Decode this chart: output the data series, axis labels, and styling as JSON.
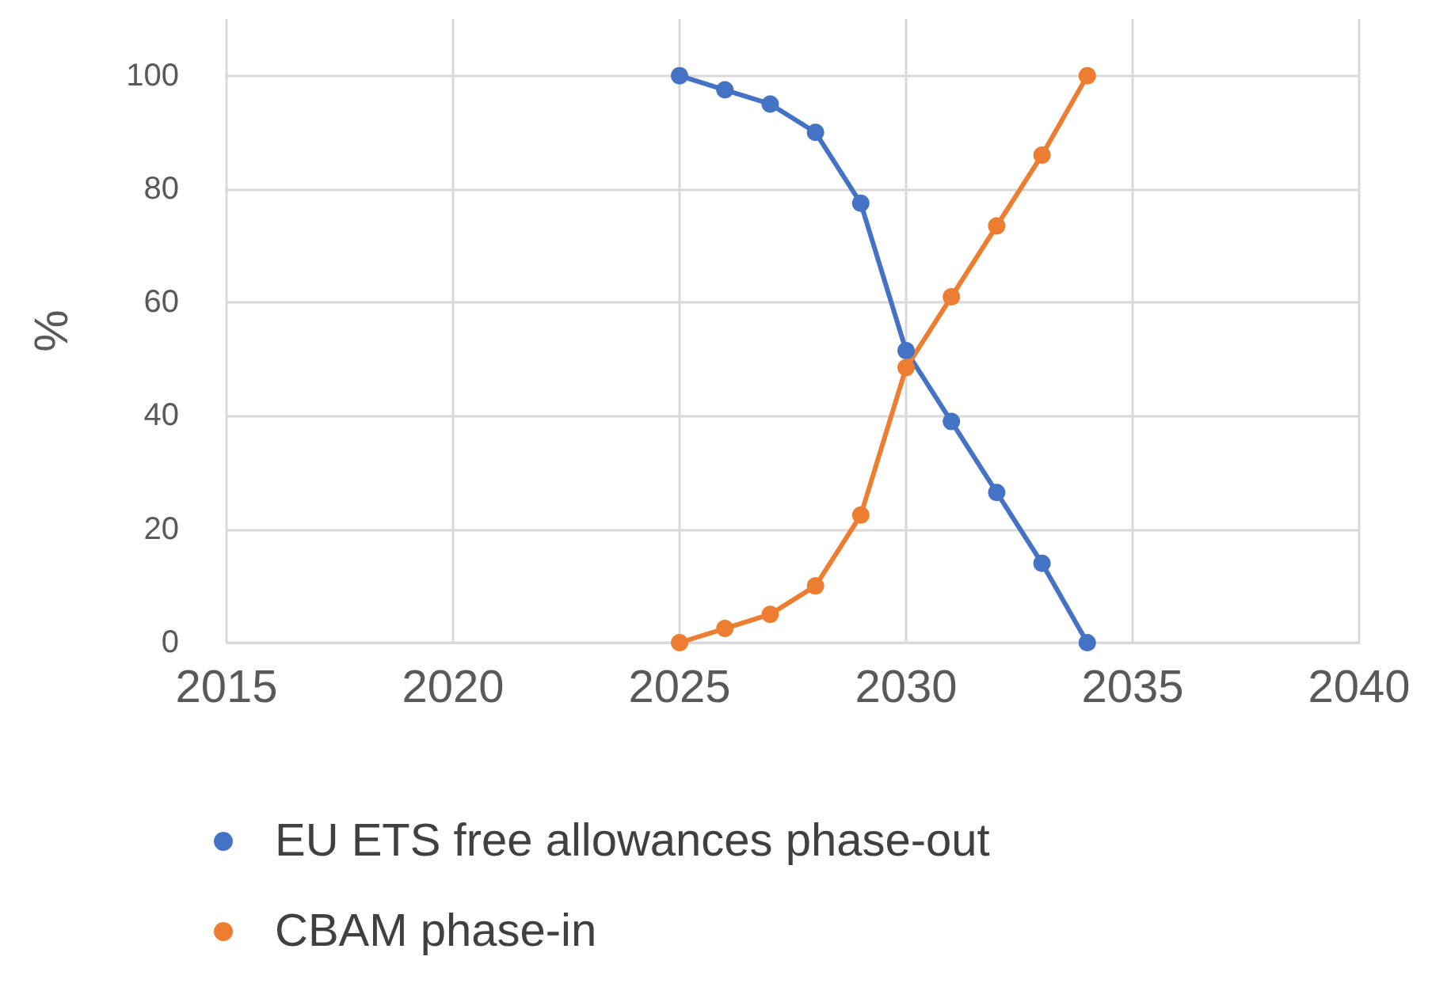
{
  "chart_data": {
    "type": "line",
    "ylabel": "%",
    "x": [
      2025,
      2026,
      2027,
      2028,
      2029,
      2030,
      2031,
      2032,
      2033,
      2034
    ],
    "series": [
      {
        "name": "EU ETS free allowances phase-out",
        "color": "#4472c4",
        "values": [
          100,
          97.5,
          95,
          90,
          77.5,
          51.5,
          39,
          26.5,
          14,
          0
        ]
      },
      {
        "name": "CBAM phase-in",
        "color": "#ed7d31",
        "values": [
          0,
          2.5,
          5,
          10,
          22.5,
          48.5,
          61,
          73.5,
          86,
          100
        ]
      }
    ],
    "xlim": [
      2015,
      2040
    ],
    "xticks": [
      2015,
      2020,
      2025,
      2030,
      2035,
      2040
    ],
    "ylim": [
      0,
      110
    ],
    "yticks": [
      0,
      20,
      40,
      60,
      80,
      100
    ],
    "grid": true,
    "legend": "bottom",
    "marker": "circle",
    "line_style": "solid"
  }
}
